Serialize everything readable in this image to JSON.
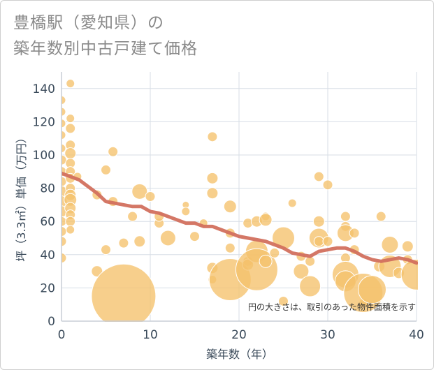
{
  "chart_data": {
    "type": "scatter",
    "title_lines": [
      "豊橋駅（愛知県）の",
      "築年数別中古戸建て価格"
    ],
    "xlabel": "築年数（年）",
    "ylabel": "坪（3.3㎡）単価（万円）",
    "xlim": [
      0,
      40
    ],
    "ylim": [
      0,
      150
    ],
    "x_ticks": [
      0,
      10,
      20,
      30,
      40
    ],
    "y_ticks": [
      0,
      20,
      40,
      60,
      80,
      100,
      120,
      140
    ],
    "grid": true,
    "note": "円の大きさは、取引のあった物件面積を示す",
    "colors": {
      "bubble": "#f5c26b",
      "bubble_stroke": "#ffffff",
      "trend": "#d2705e",
      "grid": "#d7dee6",
      "axis": "#c8ced6"
    },
    "bubbles": [
      {
        "x": 0,
        "y": 133,
        "s": 6
      },
      {
        "x": 0,
        "y": 126,
        "s": 6
      },
      {
        "x": 0,
        "y": 119,
        "s": 6
      },
      {
        "x": 0,
        "y": 112,
        "s": 6
      },
      {
        "x": 0,
        "y": 104,
        "s": 6
      },
      {
        "x": 0,
        "y": 97,
        "s": 7
      },
      {
        "x": 0,
        "y": 90,
        "s": 7
      },
      {
        "x": 0,
        "y": 84,
        "s": 7
      },
      {
        "x": 0,
        "y": 78,
        "s": 8
      },
      {
        "x": 0,
        "y": 72,
        "s": 8
      },
      {
        "x": 0,
        "y": 66,
        "s": 8
      },
      {
        "x": 0,
        "y": 60,
        "s": 7
      },
      {
        "x": 0,
        "y": 54,
        "s": 7
      },
      {
        "x": 0,
        "y": 48,
        "s": 7
      },
      {
        "x": 0,
        "y": 38,
        "s": 7
      },
      {
        "x": 1,
        "y": 143,
        "s": 6
      },
      {
        "x": 1,
        "y": 122,
        "s": 6
      },
      {
        "x": 1,
        "y": 116,
        "s": 7
      },
      {
        "x": 1,
        "y": 106,
        "s": 7
      },
      {
        "x": 1,
        "y": 101,
        "s": 8
      },
      {
        "x": 1,
        "y": 95,
        "s": 7
      },
      {
        "x": 1,
        "y": 90,
        "s": 7
      },
      {
        "x": 1,
        "y": 86,
        "s": 7
      },
      {
        "x": 1,
        "y": 80,
        "s": 7
      },
      {
        "x": 1,
        "y": 76,
        "s": 8
      },
      {
        "x": 1,
        "y": 73,
        "s": 9
      },
      {
        "x": 1,
        "y": 68,
        "s": 8
      },
      {
        "x": 1,
        "y": 64,
        "s": 7
      },
      {
        "x": 1,
        "y": 60,
        "s": 7
      },
      {
        "x": 1,
        "y": 55,
        "s": 6
      },
      {
        "x": 1.8,
        "y": 87,
        "s": 6
      },
      {
        "x": 4,
        "y": 76,
        "s": 7
      },
      {
        "x": 4,
        "y": 30,
        "s": 8
      },
      {
        "x": 5,
        "y": 91,
        "s": 7
      },
      {
        "x": 5,
        "y": 43,
        "s": 7
      },
      {
        "x": 5.8,
        "y": 102,
        "s": 7
      },
      {
        "x": 5.8,
        "y": 72,
        "s": 7
      },
      {
        "x": 7,
        "y": 47,
        "s": 7
      },
      {
        "x": 7,
        "y": 15,
        "s": 46
      },
      {
        "x": 8,
        "y": 63,
        "s": 7
      },
      {
        "x": 8.8,
        "y": 48,
        "s": 8
      },
      {
        "x": 8.8,
        "y": 78,
        "s": 11
      },
      {
        "x": 10,
        "y": 75,
        "s": 7
      },
      {
        "x": 11,
        "y": 59,
        "s": 7
      },
      {
        "x": 11,
        "y": 63,
        "s": 7
      },
      {
        "x": 12,
        "y": 50,
        "s": 11
      },
      {
        "x": 14,
        "y": 70,
        "s": 5
      },
      {
        "x": 14,
        "y": 66,
        "s": 6
      },
      {
        "x": 15,
        "y": 51,
        "s": 7
      },
      {
        "x": 16,
        "y": 59,
        "s": 6
      },
      {
        "x": 17,
        "y": 111,
        "s": 7
      },
      {
        "x": 17,
        "y": 86,
        "s": 8
      },
      {
        "x": 17,
        "y": 77,
        "s": 8
      },
      {
        "x": 17,
        "y": 32,
        "s": 8
      },
      {
        "x": 17,
        "y": 25,
        "s": 6
      },
      {
        "x": 19,
        "y": 69,
        "s": 9
      },
      {
        "x": 19,
        "y": 53,
        "s": 7
      },
      {
        "x": 19,
        "y": 44,
        "s": 7
      },
      {
        "x": 19,
        "y": 25,
        "s": 30
      },
      {
        "x": 21,
        "y": 59,
        "s": 7
      },
      {
        "x": 21,
        "y": 36,
        "s": 7
      },
      {
        "x": 21,
        "y": 34,
        "s": 8
      },
      {
        "x": 22,
        "y": 60,
        "s": 8
      },
      {
        "x": 22,
        "y": 42,
        "s": 16
      },
      {
        "x": 22,
        "y": 31,
        "s": 30
      },
      {
        "x": 23,
        "y": 63,
        "s": 6
      },
      {
        "x": 23,
        "y": 61,
        "s": 9
      },
      {
        "x": 23,
        "y": 36,
        "s": 9
      },
      {
        "x": 24,
        "y": 41,
        "s": 7
      },
      {
        "x": 25,
        "y": 50,
        "s": 16
      },
      {
        "x": 25,
        "y": 12,
        "s": 7
      },
      {
        "x": 26,
        "y": 71,
        "s": 6
      },
      {
        "x": 27,
        "y": 39,
        "s": 7
      },
      {
        "x": 27,
        "y": 30,
        "s": 11
      },
      {
        "x": 28,
        "y": 36,
        "s": 7
      },
      {
        "x": 28,
        "y": 21,
        "s": 15
      },
      {
        "x": 29,
        "y": 87,
        "s": 7
      },
      {
        "x": 29,
        "y": 60,
        "s": 8
      },
      {
        "x": 29,
        "y": 50,
        "s": 14
      },
      {
        "x": 29,
        "y": 48,
        "s": 7
      },
      {
        "x": 30,
        "y": 82,
        "s": 7
      },
      {
        "x": 30,
        "y": 48,
        "s": 7
      },
      {
        "x": 32,
        "y": 63,
        "s": 7
      },
      {
        "x": 32,
        "y": 57,
        "s": 7
      },
      {
        "x": 32,
        "y": 53,
        "s": 12
      },
      {
        "x": 32,
        "y": 38,
        "s": 7
      },
      {
        "x": 32,
        "y": 28,
        "s": 19
      },
      {
        "x": 32,
        "y": 24,
        "s": 15
      },
      {
        "x": 33,
        "y": 53,
        "s": 7
      },
      {
        "x": 33,
        "y": 43,
        "s": 7
      },
      {
        "x": 34,
        "y": 11,
        "s": 6
      },
      {
        "x": 34,
        "y": 17,
        "s": 28
      },
      {
        "x": 35,
        "y": 19,
        "s": 20
      },
      {
        "x": 35.8,
        "y": 33,
        "s": 8
      },
      {
        "x": 36,
        "y": 63,
        "s": 7
      },
      {
        "x": 37,
        "y": 46,
        "s": 12
      },
      {
        "x": 37,
        "y": 33,
        "s": 16
      },
      {
        "x": 38,
        "y": 29,
        "s": 8
      },
      {
        "x": 39,
        "y": 45,
        "s": 8
      },
      {
        "x": 39,
        "y": 37,
        "s": 7
      },
      {
        "x": 40,
        "y": 28,
        "s": 22
      }
    ],
    "trend": {
      "x": [
        0,
        1,
        2,
        3,
        4,
        5,
        6,
        7,
        8,
        9,
        10,
        11,
        12,
        13,
        14,
        15,
        16,
        17,
        18,
        19,
        20,
        21,
        22,
        23,
        24,
        25,
        26,
        27,
        28,
        29,
        30,
        31,
        32,
        33,
        34,
        35,
        36,
        37,
        38,
        39,
        40
      ],
      "y": [
        89,
        87,
        85,
        81,
        77,
        72,
        71,
        70,
        69,
        69,
        66,
        65,
        63,
        61,
        59,
        59,
        57,
        57,
        55,
        53,
        51,
        50,
        49,
        48,
        46,
        44,
        41,
        40,
        39,
        42,
        43,
        44,
        44,
        42,
        39,
        37,
        36,
        37,
        38,
        37,
        35
      ]
    }
  }
}
